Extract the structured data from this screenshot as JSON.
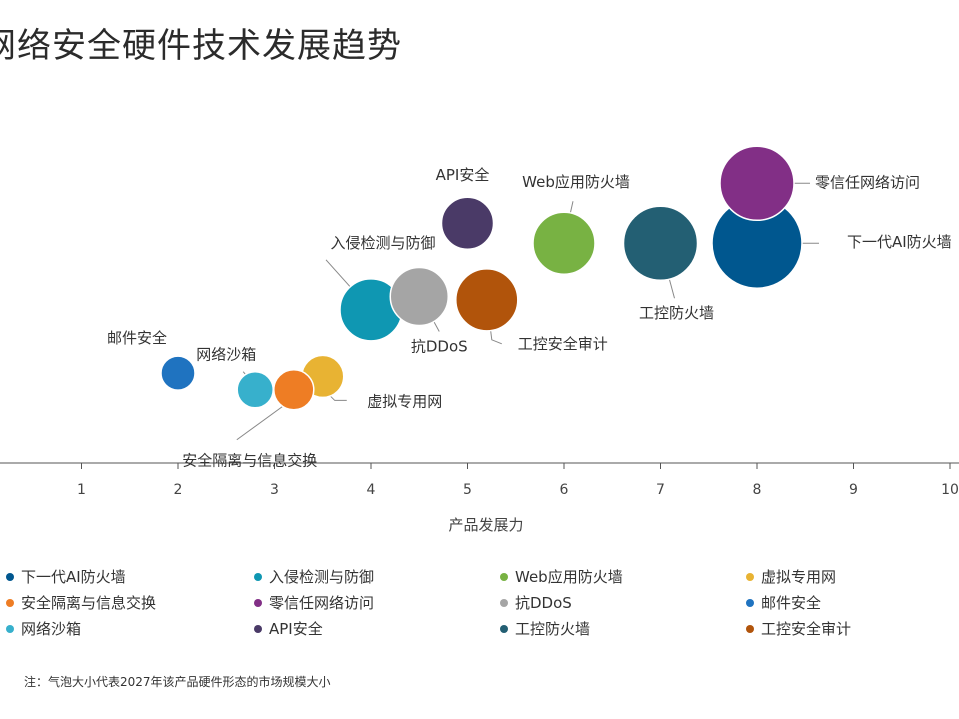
{
  "chart_data": {
    "type": "bubble",
    "title": "网络安全硬件技术发展趋势",
    "xlabel": "产品发展力",
    "ylabel": "",
    "xlim": [
      0,
      10
    ],
    "xticks": [
      "1",
      "2",
      "3",
      "4",
      "5",
      "6",
      "7",
      "8",
      "9",
      "10"
    ],
    "grid": false,
    "note": "注：气泡大小代表2027年该产品硬件形态的市场规模大小",
    "series": [
      {
        "name": "下一代AI防火墙",
        "x": 8.0,
        "y": 6.6,
        "size": 45,
        "color": "#00578f",
        "label": "下一代AI防火墙"
      },
      {
        "name": "入侵检测与防御",
        "x": 4.0,
        "y": 4.6,
        "size": 31,
        "color": "#0f97b2",
        "label": "入侵检测与防御"
      },
      {
        "name": "Web应用防火墙",
        "x": 6.0,
        "y": 6.6,
        "size": 31,
        "color": "#78b243",
        "label": "Web应用防火墙"
      },
      {
        "name": "虚拟专用网",
        "x": 3.5,
        "y": 2.6,
        "size": 21,
        "color": "#e8b333",
        "label": "虚拟专用网"
      },
      {
        "name": "安全隔离与信息交换",
        "x": 3.2,
        "y": 2.2,
        "size": 20,
        "color": "#ee7d24",
        "label": "安全隔离与信息交换"
      },
      {
        "name": "零信任网络访问",
        "x": 8.0,
        "y": 8.4,
        "size": 37,
        "color": "#822f86",
        "label": "零信任网络访问"
      },
      {
        "name": "抗DDoS",
        "x": 4.5,
        "y": 5.0,
        "size": 29,
        "color": "#a5a5a5",
        "label": "抗DDoS"
      },
      {
        "name": "邮件安全",
        "x": 2.0,
        "y": 2.7,
        "size": 17,
        "color": "#1f73c0",
        "label": "邮件安全"
      },
      {
        "name": "网络沙箱",
        "x": 2.8,
        "y": 2.2,
        "size": 18,
        "color": "#37b0cc",
        "label": "网络沙箱"
      },
      {
        "name": "API安全",
        "x": 5.0,
        "y": 7.2,
        "size": 26,
        "color": "#4a3a67",
        "label": "API安全"
      },
      {
        "name": "工控防火墙",
        "x": 7.0,
        "y": 6.6,
        "size": 37,
        "color": "#235f73",
        "label": "工控防火墙"
      },
      {
        "name": "工控安全审计",
        "x": 5.2,
        "y": 4.9,
        "size": 31,
        "color": "#b1540b",
        "label": "工控安全审计"
      }
    ]
  }
}
